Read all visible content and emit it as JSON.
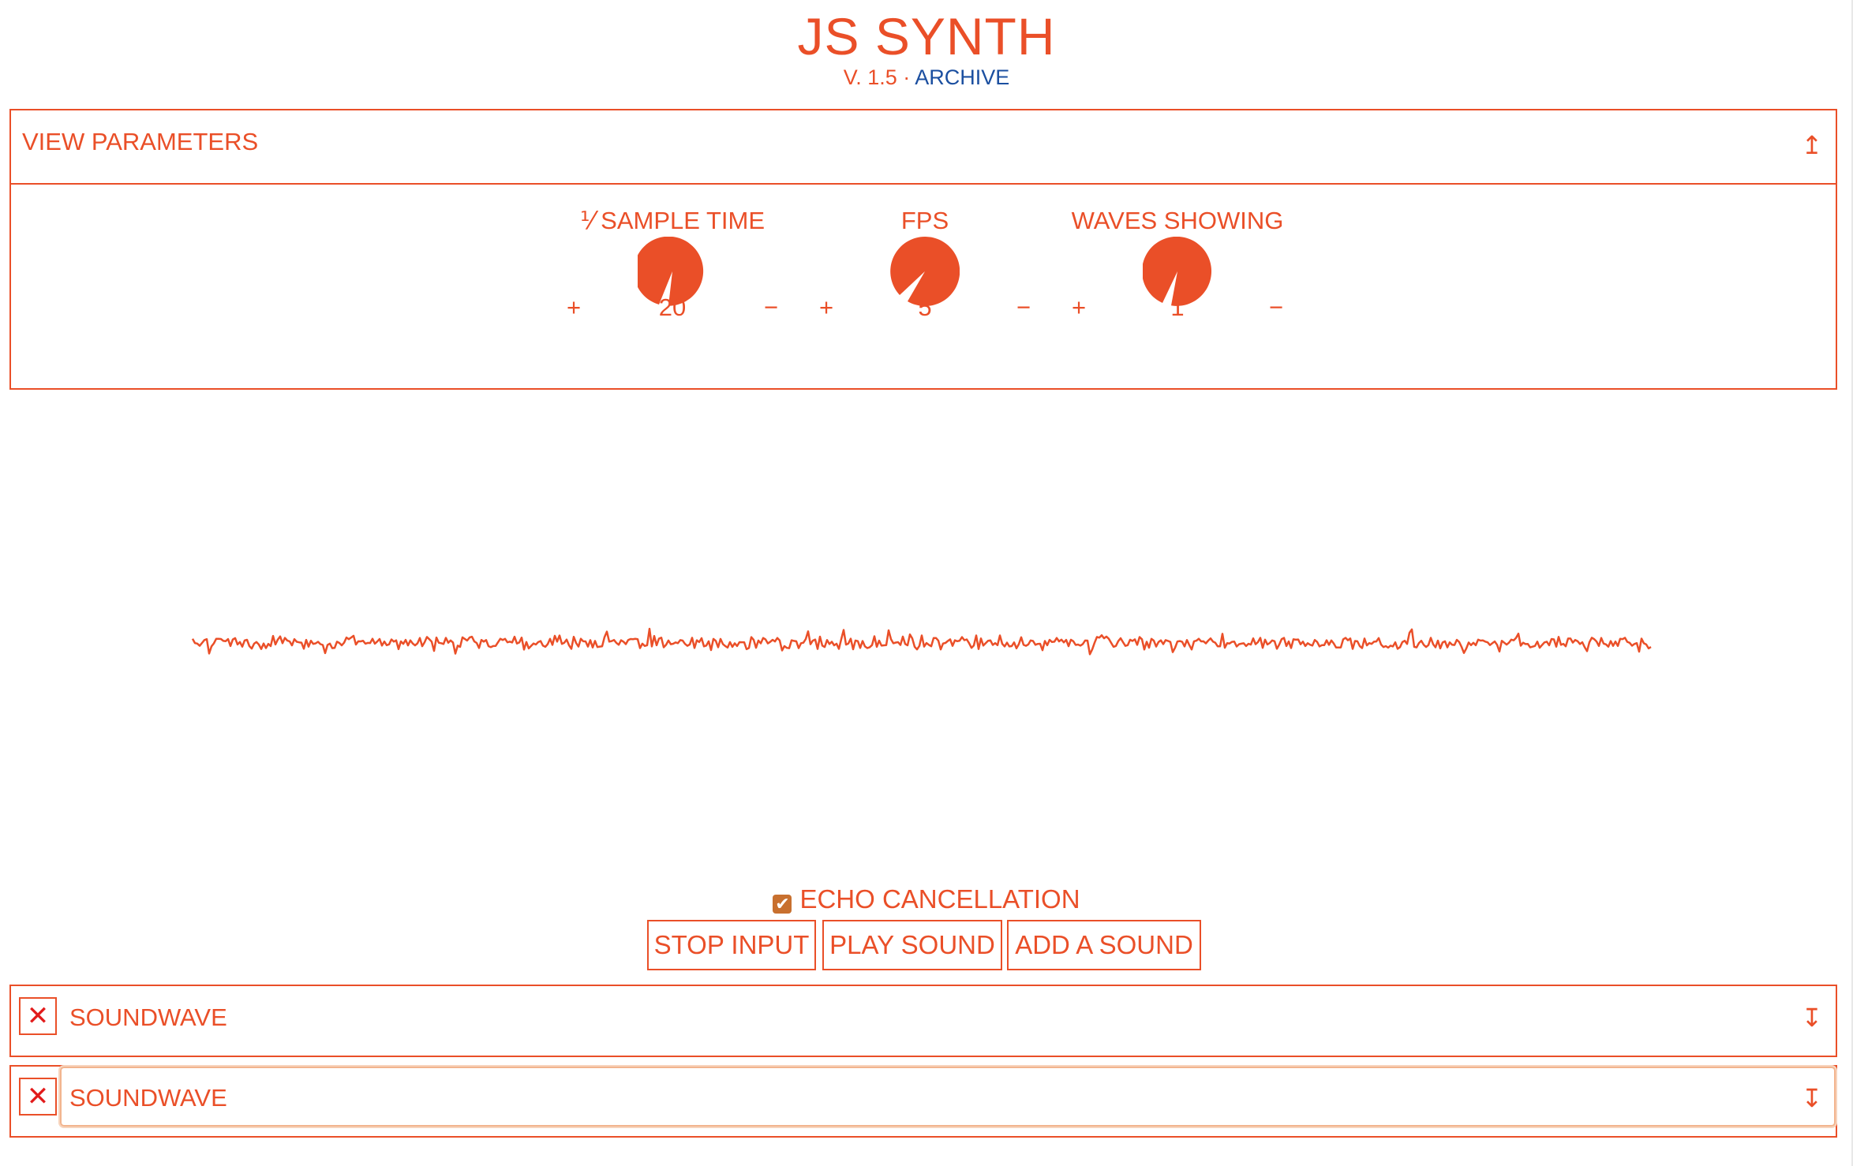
{
  "header": {
    "title": "JS SYNTH",
    "version": "V. 1.5",
    "separator": " · ",
    "archive_link": "ARCHIVE"
  },
  "params": {
    "title": "VIEW PARAMETERS",
    "toggle_icon": "↥",
    "knobs": [
      {
        "label": "⅟ SAMPLE TIME",
        "value": "20",
        "plus": "+",
        "minus": "−"
      },
      {
        "label": "FPS",
        "value": "5",
        "plus": "+",
        "minus": "−"
      },
      {
        "label": "WAVES SHOWING",
        "value": "1",
        "plus": "+",
        "minus": "−"
      }
    ]
  },
  "echo": {
    "label": "ECHO CANCELLATION",
    "checked": true,
    "check_glyph": "✔"
  },
  "buttons": {
    "stop_input": "STOP INPUT",
    "play_sound": "PLAY SOUND",
    "add_sound": "ADD A SOUND"
  },
  "sounds": [
    {
      "title": "SOUNDWAVE",
      "close_icon": "✕",
      "expand_icon": "↧"
    },
    {
      "title": "SOUNDWAVE",
      "close_icon": "✕",
      "expand_icon": "↧"
    }
  ],
  "colors": {
    "accent": "#ea4f28",
    "link": "#1b4fa0",
    "close": "#e21b1b",
    "checkbox": "#c8702f"
  }
}
